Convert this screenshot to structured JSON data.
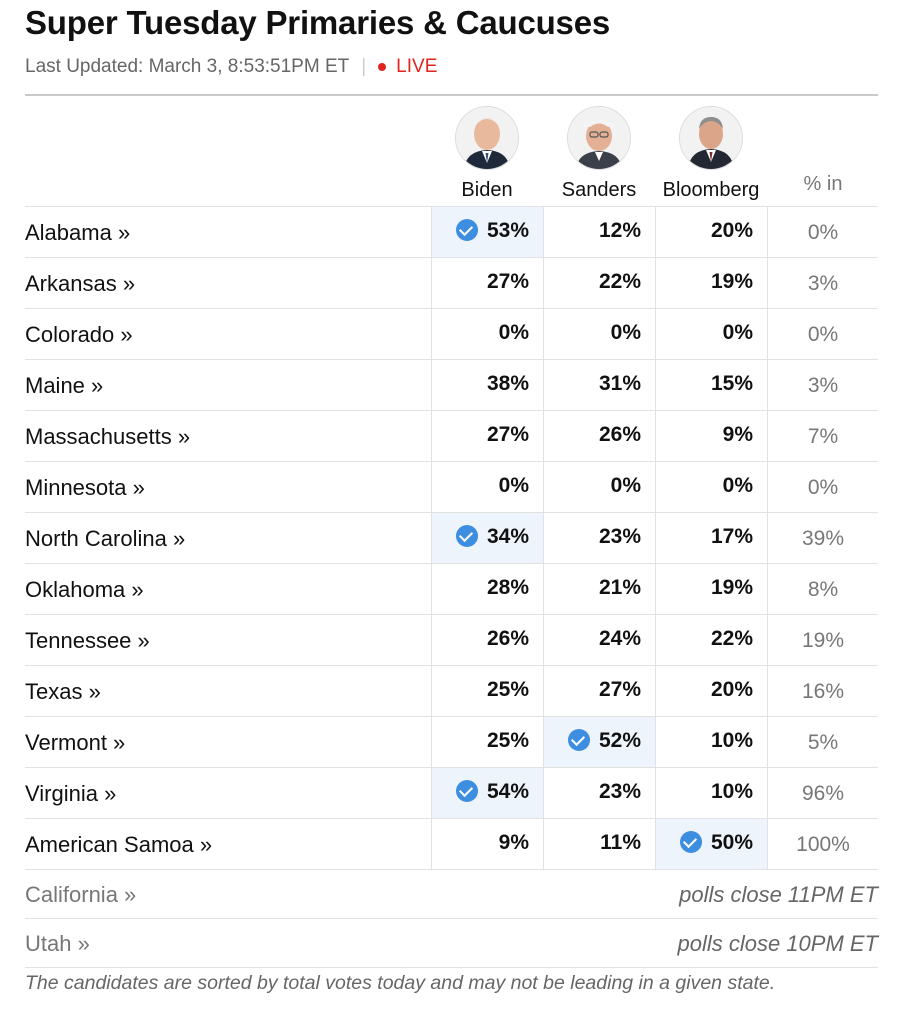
{
  "header": {
    "title": "Super Tuesday Primaries & Caucuses",
    "updated": "Last Updated: March 3, 8:53:51PM ET",
    "separator": "|",
    "live": "LIVE"
  },
  "candidates": [
    {
      "name": "Biden"
    },
    {
      "name": "Sanders"
    },
    {
      "name": "Bloomberg"
    }
  ],
  "pct_in_header": "% in",
  "rows": [
    {
      "state": "Alabama »",
      "values": [
        "53%",
        "12%",
        "20%"
      ],
      "pct_in": "0%",
      "winner": 0
    },
    {
      "state": "Arkansas »",
      "values": [
        "27%",
        "22%",
        "19%"
      ],
      "pct_in": "3%",
      "winner": null
    },
    {
      "state": "Colorado »",
      "values": [
        "0%",
        "0%",
        "0%"
      ],
      "pct_in": "0%",
      "winner": null
    },
    {
      "state": "Maine »",
      "values": [
        "38%",
        "31%",
        "15%"
      ],
      "pct_in": "3%",
      "winner": null
    },
    {
      "state": "Massachusetts »",
      "values": [
        "27%",
        "26%",
        "9%"
      ],
      "pct_in": "7%",
      "winner": null
    },
    {
      "state": "Minnesota »",
      "values": [
        "0%",
        "0%",
        "0%"
      ],
      "pct_in": "0%",
      "winner": null
    },
    {
      "state": "North Carolina »",
      "values": [
        "34%",
        "23%",
        "17%"
      ],
      "pct_in": "39%",
      "winner": 0
    },
    {
      "state": "Oklahoma »",
      "values": [
        "28%",
        "21%",
        "19%"
      ],
      "pct_in": "8%",
      "winner": null
    },
    {
      "state": "Tennessee »",
      "values": [
        "26%",
        "24%",
        "22%"
      ],
      "pct_in": "19%",
      "winner": null
    },
    {
      "state": "Texas »",
      "values": [
        "25%",
        "27%",
        "20%"
      ],
      "pct_in": "16%",
      "winner": null
    },
    {
      "state": "Vermont »",
      "values": [
        "25%",
        "52%",
        "10%"
      ],
      "pct_in": "5%",
      "winner": 1
    },
    {
      "state": "Virginia »",
      "values": [
        "54%",
        "23%",
        "10%"
      ],
      "pct_in": "96%",
      "winner": 0
    },
    {
      "state": "American Samoa »",
      "values": [
        "9%",
        "11%",
        "50%"
      ],
      "pct_in": "100%",
      "winner": 2
    }
  ],
  "pending": [
    {
      "state": "California »",
      "note": "polls close 11PM ET"
    },
    {
      "state": "Utah »",
      "note": "polls close 10PM ET"
    }
  ],
  "footnote": "The candidates are sorted by total votes today and may not be leading in a given state.",
  "colors": {
    "live": "#e0241e",
    "winner_check": "#3d8de0",
    "winner_bg": "#eef4fb"
  }
}
